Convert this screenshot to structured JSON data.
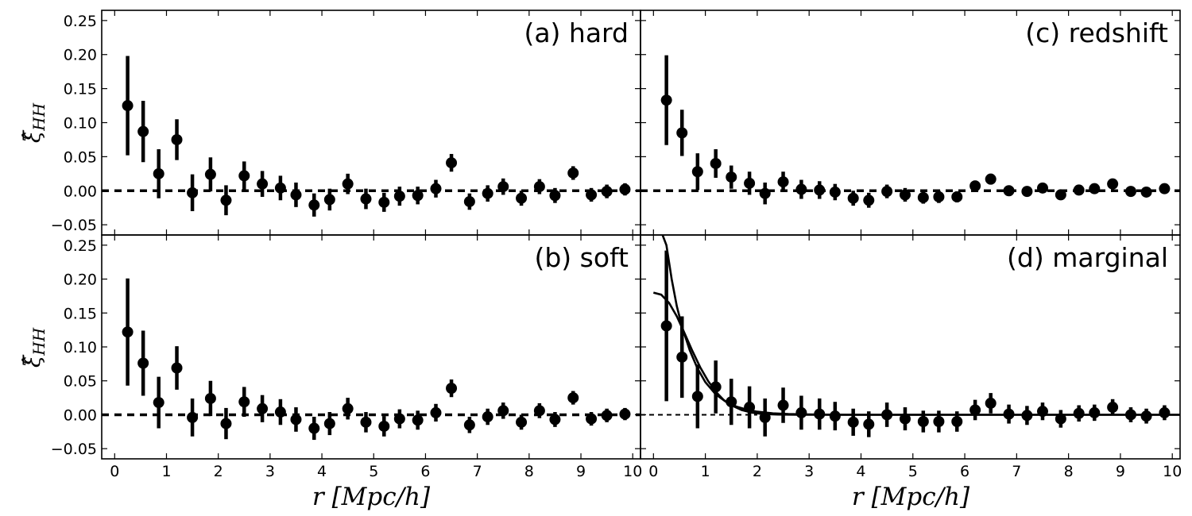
{
  "chart_data": {
    "type": "scatter",
    "layout": "2x2 shared axes",
    "xlabel": "r [Mpc/h]",
    "ylabel": "ξ̂HH",
    "ylabel_base": "ξ̂",
    "ylabel_sub": "HH",
    "xlim": [
      -0.25,
      10.15
    ],
    "ylim": [
      -0.065,
      0.265
    ],
    "xticks": [
      0,
      1,
      2,
      3,
      4,
      5,
      6,
      7,
      8,
      9,
      10
    ],
    "yticks": [
      -0.05,
      0.0,
      0.05,
      0.1,
      0.15,
      0.2,
      0.25
    ],
    "ytick_labels": [
      "−0.05",
      "0.00",
      "0.05",
      "0.10",
      "0.15",
      "0.20",
      "0.25"
    ],
    "grid": false,
    "reference_line": {
      "y": 0,
      "style": "dashed"
    },
    "panels": [
      {
        "key": "a",
        "label": "(a) hard",
        "label_position": "top-right",
        "x": [
          0.25,
          0.55,
          0.85,
          1.2,
          1.5,
          1.85,
          2.15,
          2.5,
          2.85,
          3.2,
          3.5,
          3.85,
          4.15,
          4.5,
          4.85,
          5.2,
          5.5,
          5.85,
          6.2,
          6.5,
          6.85,
          7.2,
          7.5,
          7.85,
          8.2,
          8.5,
          8.85,
          9.2,
          9.5,
          9.85
        ],
        "y": [
          0.125,
          0.087,
          0.025,
          0.075,
          -0.003,
          0.024,
          -0.014,
          0.022,
          0.01,
          0.004,
          -0.006,
          -0.021,
          -0.013,
          0.01,
          -0.012,
          -0.017,
          -0.008,
          -0.007,
          0.003,
          0.041,
          -0.016,
          -0.004,
          0.006,
          -0.011,
          0.006,
          -0.007,
          0.026,
          -0.006,
          -0.001,
          0.002
        ],
        "yerr": [
          0.073,
          0.045,
          0.036,
          0.03,
          0.027,
          0.025,
          0.022,
          0.021,
          0.019,
          0.018,
          0.018,
          0.017,
          0.016,
          0.015,
          0.015,
          0.014,
          0.014,
          0.013,
          0.013,
          0.013,
          0.012,
          0.012,
          0.012,
          0.011,
          0.011,
          0.011,
          0.01,
          0.01,
          0.01,
          0.009
        ]
      },
      {
        "key": "c",
        "label": "(c) redshift",
        "label_position": "top-right",
        "x": [
          0.25,
          0.55,
          0.85,
          1.2,
          1.5,
          1.85,
          2.15,
          2.5,
          2.85,
          3.2,
          3.5,
          3.85,
          4.15,
          4.5,
          4.85,
          5.2,
          5.5,
          5.85,
          6.2,
          6.5,
          6.85,
          7.2,
          7.5,
          7.85,
          8.2,
          8.5,
          8.85,
          9.2,
          9.5,
          9.85
        ],
        "y": [
          0.133,
          0.085,
          0.028,
          0.04,
          0.02,
          0.011,
          -0.004,
          0.013,
          0.002,
          0.001,
          -0.002,
          -0.011,
          -0.014,
          -0.001,
          -0.006,
          -0.01,
          -0.009,
          -0.009,
          0.007,
          0.017,
          0.0,
          -0.001,
          0.004,
          -0.006,
          0.001,
          0.003,
          0.01,
          -0.001,
          -0.002,
          0.003
        ],
        "yerr": [
          0.066,
          0.034,
          0.027,
          0.021,
          0.017,
          0.017,
          0.016,
          0.015,
          0.014,
          0.013,
          0.012,
          0.011,
          0.011,
          0.01,
          0.01,
          0.009,
          0.009,
          0.008,
          0.008,
          0.008,
          0.007,
          0.007,
          0.007,
          0.006,
          0.006,
          0.006,
          0.006,
          0.005,
          0.005,
          0.005
        ]
      },
      {
        "key": "b",
        "label": "(b) soft",
        "label_position": "top-right",
        "x": [
          0.25,
          0.55,
          0.85,
          1.2,
          1.5,
          1.85,
          2.15,
          2.5,
          2.85,
          3.2,
          3.5,
          3.85,
          4.15,
          4.5,
          4.85,
          5.2,
          5.5,
          5.85,
          6.2,
          6.5,
          6.85,
          7.2,
          7.5,
          7.85,
          8.2,
          8.5,
          8.85,
          9.2,
          9.5,
          9.85
        ],
        "y": [
          0.122,
          0.076,
          0.018,
          0.069,
          -0.004,
          0.024,
          -0.013,
          0.019,
          0.009,
          0.004,
          -0.007,
          -0.02,
          -0.013,
          0.009,
          -0.011,
          -0.017,
          -0.006,
          -0.008,
          0.003,
          0.039,
          -0.015,
          -0.003,
          0.006,
          -0.011,
          0.006,
          -0.007,
          0.025,
          -0.006,
          -0.001,
          0.001
        ],
        "yerr": [
          0.079,
          0.048,
          0.038,
          0.032,
          0.028,
          0.026,
          0.023,
          0.022,
          0.02,
          0.019,
          0.018,
          0.017,
          0.017,
          0.016,
          0.015,
          0.015,
          0.014,
          0.014,
          0.013,
          0.013,
          0.012,
          0.012,
          0.012,
          0.011,
          0.011,
          0.011,
          0.01,
          0.01,
          0.01,
          0.009
        ]
      },
      {
        "key": "d",
        "label": "(d) marginal",
        "label_position": "top-right",
        "x": [
          0.25,
          0.55,
          0.85,
          1.2,
          1.5,
          1.85,
          2.15,
          2.5,
          2.85,
          3.2,
          3.5,
          3.85,
          4.15,
          4.5,
          4.85,
          5.2,
          5.5,
          5.85,
          6.2,
          6.5,
          6.85,
          7.2,
          7.5,
          7.85,
          8.2,
          8.5,
          8.85,
          9.2,
          9.5,
          9.85
        ],
        "y": [
          0.131,
          0.085,
          0.027,
          0.041,
          0.019,
          0.011,
          -0.004,
          0.014,
          0.003,
          0.001,
          -0.002,
          -0.011,
          -0.014,
          0.0,
          -0.006,
          -0.01,
          -0.01,
          -0.01,
          0.007,
          0.017,
          0.001,
          -0.001,
          0.005,
          -0.006,
          0.002,
          0.003,
          0.011,
          0.0,
          -0.002,
          0.003
        ],
        "yerr": [
          0.111,
          0.06,
          0.047,
          0.039,
          0.034,
          0.031,
          0.028,
          0.026,
          0.025,
          0.023,
          0.021,
          0.02,
          0.019,
          0.018,
          0.017,
          0.016,
          0.016,
          0.015,
          0.015,
          0.015,
          0.014,
          0.014,
          0.013,
          0.013,
          0.012,
          0.012,
          0.012,
          0.011,
          0.011,
          0.011
        ],
        "reference_line_dashed_to": 2.0,
        "model_curves": [
          {
            "x": [
              0.15,
              0.25,
              0.35,
              0.45,
              0.55,
              0.7,
              0.85,
              1.0,
              1.2,
              1.4,
              1.6,
              1.8,
              2.0,
              2.3,
              2.6,
              3.0,
              3.5,
              4.0,
              5.0,
              6.0,
              7.0,
              8.0,
              9.0,
              10.15
            ],
            "y": [
              0.27,
              0.25,
              0.2,
              0.16,
              0.13,
              0.095,
              0.068,
              0.048,
              0.03,
              0.019,
              0.012,
              0.0075,
              0.0045,
              0.002,
              0.001,
              0.0004,
              0.0001,
              0.0,
              0.0,
              0.0,
              0.0,
              0.0,
              0.0,
              0.0
            ]
          },
          {
            "x": [
              0.0,
              0.15,
              0.3,
              0.45,
              0.6,
              0.75,
              0.9,
              1.05,
              1.2,
              1.35,
              1.5,
              1.7,
              1.9,
              2.1,
              2.4,
              2.8,
              3.2,
              4.0,
              5.0,
              6.0,
              7.0,
              8.0,
              9.0,
              10.15
            ],
            "y": [
              0.18,
              0.177,
              0.165,
              0.145,
              0.12,
              0.094,
              0.07,
              0.05,
              0.034,
              0.022,
              0.014,
              0.007,
              0.003,
              0.0012,
              0.0003,
              0.0,
              0.0,
              0.0,
              0.0,
              0.0,
              0.0,
              0.0,
              0.0,
              0.0
            ]
          }
        ]
      }
    ]
  }
}
